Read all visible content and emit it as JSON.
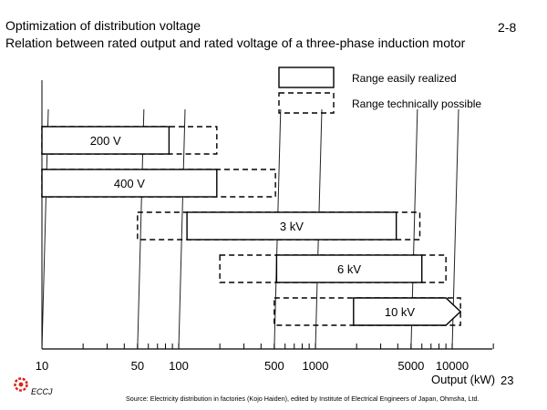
{
  "header": {
    "title_line1": "Optimization of distribution voltage",
    "title_line2": "Relation between rated output and rated voltage of a three-phase induction motor",
    "page_number": "2-8"
  },
  "chart_data": {
    "type": "bar",
    "orientation": "horizontal-range",
    "xlabel": "Output (kW)",
    "x_scale": "log",
    "xlim": [
      10,
      20000
    ],
    "x_tick_labels": [
      "10",
      "50",
      "100",
      "500",
      "1000",
      "5000",
      "10000"
    ],
    "x_tick_values": [
      10,
      50,
      100,
      500,
      1000,
      5000,
      10000
    ],
    "legend": {
      "placement": "top-right",
      "entries": [
        {
          "label": "Range easily realized",
          "style": "solid"
        },
        {
          "label": "Range technically possible",
          "style": "dashed"
        }
      ]
    },
    "series": [
      {
        "label": "200 V",
        "easy": [
          10,
          85
        ],
        "possible": [
          10,
          190
        ]
      },
      {
        "label": "400 V",
        "easy": [
          10,
          190
        ],
        "possible": [
          10,
          510
        ]
      },
      {
        "label": "3 kV",
        "easy": [
          115,
          3900
        ],
        "possible": [
          50,
          5800
        ]
      },
      {
        "label": "6 kV",
        "easy": [
          520,
          6000
        ],
        "possible": [
          200,
          9000
        ]
      },
      {
        "label": "10 kV",
        "easy": [
          1900,
          9000
        ],
        "possible": [
          500,
          11500
        ],
        "arrow": true
      }
    ]
  },
  "footer": {
    "logo_text": "ECCJ",
    "source": "Source: Electricity distribution in factories (Kojo Haiden),  edited by Institute of Electrical Engineers of Japan, Ohmsha, Ltd.",
    "slide_number": "23"
  },
  "colors": {
    "logo_red": "#d9241c"
  }
}
